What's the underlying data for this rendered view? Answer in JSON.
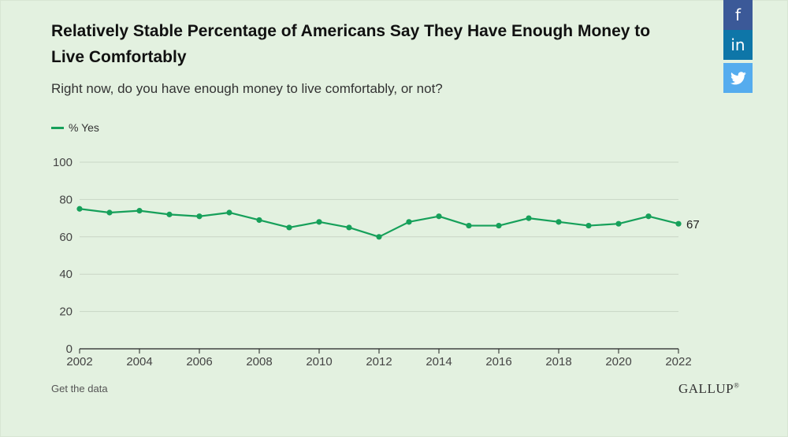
{
  "header": {
    "title": "Relatively Stable Percentage of Americans Say They Have Enough Money to Live Comfortably",
    "subtitle": "Right now, do you have enough money to live comfortably, or not?"
  },
  "share": {
    "facebook_icon": "f",
    "linkedin_icon": "in"
  },
  "footer": {
    "get_data_label": "Get the data",
    "brand": "GALLUP",
    "brand_mark": "®"
  },
  "colors": {
    "line": "#16a05a",
    "background": "#e3f1e0",
    "grid": "#c9d6c6"
  },
  "chart_data": {
    "type": "line",
    "title": "Relatively Stable Percentage of Americans Say They Have Enough Money to Live Comfortably",
    "subtitle": "Right now, do you have enough money to live comfortably, or not?",
    "xlabel": "",
    "ylabel": "",
    "x": [
      2002,
      2003,
      2004,
      2005,
      2006,
      2007,
      2008,
      2009,
      2010,
      2011,
      2012,
      2013,
      2014,
      2015,
      2016,
      2017,
      2018,
      2019,
      2020,
      2021,
      2022
    ],
    "series": [
      {
        "name": "% Yes",
        "values": [
          75,
          73,
          74,
          72,
          71,
          73,
          69,
          65,
          68,
          65,
          60,
          68,
          71,
          66,
          66,
          70,
          68,
          66,
          67,
          71,
          67
        ]
      }
    ],
    "x_ticks": [
      2002,
      2004,
      2006,
      2008,
      2010,
      2012,
      2014,
      2016,
      2018,
      2020,
      2022
    ],
    "y_ticks": [
      0,
      20,
      40,
      60,
      80,
      100
    ],
    "xlim": [
      2002,
      2022
    ],
    "ylim": [
      0,
      100
    ],
    "end_label": "67",
    "grid": true,
    "legend_position": "top-left"
  }
}
